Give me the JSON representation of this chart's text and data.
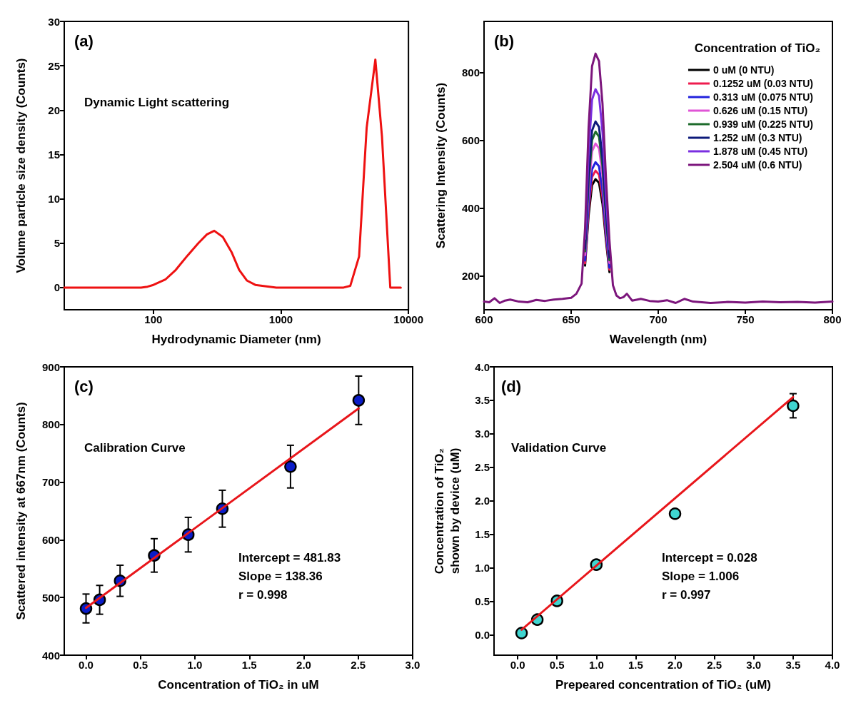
{
  "chart_data": [
    {
      "type": "line",
      "xlabel": "Hydrodynamic Diameter (nm)",
      "ylabel": "Volume particle size density (Counts)",
      "log": "x",
      "xlim": [
        20,
        10000
      ],
      "xticks": [
        100,
        1000,
        10000
      ],
      "ylim": [
        -2.5,
        30
      ],
      "yticks": [
        0,
        5,
        10,
        15,
        20,
        25,
        30
      ],
      "annotations": [
        "(a)",
        "Dynamic Light scattering"
      ],
      "x": [
        20,
        50,
        80,
        90,
        100,
        124,
        150,
        185,
        225,
        263,
        300,
        350,
        410,
        470,
        540,
        630,
        920,
        3100,
        3500,
        4100,
        4700,
        5500,
        6200,
        7200,
        8700
      ],
      "series": [
        {
          "color": "#ee1111",
          "values": [
            0,
            0,
            0,
            0.1,
            0.3,
            0.9,
            2.0,
            3.6,
            5.0,
            6.0,
            6.4,
            5.7,
            4.0,
            2.0,
            0.8,
            0.3,
            0,
            0,
            0.2,
            3.5,
            18,
            25.7,
            17,
            0,
            0
          ]
        }
      ]
    },
    {
      "type": "line",
      "xlabel": "Wavelength (nm)",
      "ylabel": "Scattering Intensity (Counts)",
      "legend_title": "Concentration of TiO₂",
      "legend": "top right",
      "xlim": [
        600,
        800
      ],
      "xticks": [
        600,
        650,
        700,
        750,
        800
      ],
      "ylim": [
        100,
        950
      ],
      "yticks": [
        200,
        400,
        600,
        800
      ],
      "annotations": [
        "(b)"
      ],
      "x": [
        600,
        603,
        606,
        609,
        612,
        615,
        620,
        625,
        630,
        635,
        640,
        645,
        650,
        653,
        656,
        658,
        660,
        662,
        664,
        666,
        668,
        670,
        672,
        674,
        676,
        678,
        680,
        682,
        685,
        690,
        695,
        700,
        705,
        710,
        715,
        720,
        725,
        730,
        740,
        750,
        760,
        770,
        780,
        790,
        800
      ],
      "series": [
        {
          "name": "0 uM (0 NTU)",
          "color": "#000000",
          "values": [
            null,
            null,
            null,
            null,
            null,
            null,
            null,
            null,
            null,
            null,
            null,
            null,
            null,
            null,
            null,
            230,
            376,
            467,
            485,
            474,
            412,
            303,
            211,
            null,
            null,
            null,
            null,
            null,
            null,
            null,
            null,
            null,
            null,
            null,
            null,
            null,
            null,
            null,
            null,
            null,
            null,
            null,
            null,
            null,
            null
          ]
        },
        {
          "name": "0.1252 uM (0.03 NTU)",
          "color": "#ee1c4e",
          "values": [
            null,
            null,
            null,
            null,
            null,
            null,
            null,
            null,
            null,
            null,
            null,
            null,
            null,
            null,
            null,
            237,
            393,
            491,
            510,
            498,
            432,
            315,
            218,
            null,
            null,
            null,
            null,
            null,
            null,
            null,
            null,
            null,
            null,
            null,
            null,
            null,
            null,
            null,
            null,
            null,
            null,
            null,
            null,
            null,
            null
          ]
        },
        {
          "name": "0.313 uM (0.075 NTU)",
          "color": "#2222dd",
          "values": [
            null,
            null,
            null,
            null,
            null,
            null,
            null,
            null,
            null,
            null,
            null,
            null,
            null,
            null,
            null,
            245,
            411,
            514,
            535,
            523,
            452,
            328,
            224,
            null,
            null,
            null,
            null,
            null,
            null,
            null,
            null,
            null,
            null,
            null,
            null,
            null,
            null,
            null,
            null,
            null,
            null,
            null,
            null,
            null,
            null
          ]
        },
        {
          "name": "0.626 uM (0.15 NTU)",
          "color": "#e055d6",
          "values": [
            null,
            null,
            null,
            null,
            null,
            null,
            null,
            null,
            null,
            null,
            null,
            null,
            null,
            null,
            null,
            261,
            449,
            567,
            590,
            576,
            496,
            355,
            238,
            null,
            null,
            null,
            null,
            null,
            null,
            null,
            null,
            null,
            null,
            null,
            null,
            null,
            null,
            null,
            null,
            null,
            null,
            null,
            null,
            null,
            null
          ]
        },
        {
          "name": "0.939 uM (0.225 NTU)",
          "color": "#1d6b2b",
          "values": [
            null,
            null,
            null,
            null,
            null,
            null,
            null,
            null,
            null,
            null,
            null,
            null,
            null,
            null,
            null,
            272,
            474,
            600,
            625,
            610,
            524,
            373,
            246,
            null,
            null,
            null,
            null,
            null,
            null,
            null,
            null,
            null,
            null,
            null,
            null,
            null,
            null,
            null,
            null,
            null,
            null,
            null,
            null,
            null,
            null
          ]
        },
        {
          "name": "1.252 uM (0.3 NTU)",
          "color": "#0d1a7a",
          "values": [
            null,
            null,
            null,
            null,
            null,
            null,
            null,
            null,
            null,
            null,
            null,
            null,
            null,
            null,
            null,
            281,
            495,
            628,
            655,
            639,
            548,
            388,
            254,
            null,
            null,
            null,
            null,
            null,
            null,
            null,
            null,
            null,
            null,
            null,
            null,
            null,
            null,
            null,
            null,
            null,
            null,
            null,
            null,
            null,
            null
          ]
        },
        {
          "name": "1.878 uM (0.45 NTU)",
          "color": "#7a2fe0",
          "values": [
            null,
            null,
            null,
            null,
            null,
            null,
            null,
            null,
            null,
            null,
            null,
            null,
            null,
            null,
            null,
            309,
            561,
            719,
            750,
            731,
            624,
            435,
            278,
            null,
            null,
            null,
            null,
            null,
            null,
            null,
            null,
            null,
            null,
            null,
            null,
            null,
            null,
            null,
            null,
            null,
            null,
            null,
            null,
            null,
            null
          ]
        },
        {
          "name": "2.504 uM (0.6 NTU)",
          "color": "#7c167c",
          "values": [
            124,
            122,
            134,
            120,
            127,
            130,
            124,
            122,
            129,
            126,
            130,
            132,
            135,
            147,
            177,
            341,
            635,
            818,
            855,
            833,
            708,
            488,
            304,
            172,
            142,
            134,
            137,
            147,
            127,
            132,
            126,
            124,
            128,
            120,
            132,
            124,
            122,
            120,
            123,
            121,
            124,
            122,
            123,
            121,
            124
          ]
        }
      ]
    },
    {
      "type": "scatter",
      "xlabel": "Concentration of TiO₂ in uM",
      "ylabel": "Scattered intensity at 667nm (Counts)",
      "xlim": [
        -0.2,
        3.0
      ],
      "xticks": [
        {
          "value": 0,
          "label": "0.0"
        },
        0.5,
        {
          "value": 1,
          "label": "1.0"
        },
        1.5,
        {
          "value": 2,
          "label": "2.0"
        },
        2.5,
        {
          "value": 3,
          "label": "3.0"
        }
      ],
      "ylim": [
        400,
        900
      ],
      "yticks": [
        400,
        500,
        600,
        700,
        800,
        900
      ],
      "annotations": [
        "(c)",
        "Calibration Curve",
        "Intercept = 481.83",
        "Slope = 138.36",
        "r = 0.998"
      ],
      "x": [
        0,
        0.1252,
        0.313,
        0.626,
        0.939,
        1.252,
        1.878,
        2.504
      ],
      "series": [
        {
          "color": "#0a1cc8",
          "marker": "circle",
          "values": [
            481,
            496,
            529,
            573,
            609,
            654,
            727,
            842
          ],
          "errors": [
            25,
            25,
            27,
            29,
            30,
            32,
            37,
            42
          ]
        },
        {
          "type": "line",
          "marker": "none",
          "color": "#e8161b",
          "x": [
            0,
            2.504
          ],
          "values": [
            482,
            828
          ]
        }
      ]
    },
    {
      "type": "scatter",
      "xlabel": "Prepeared concentration of TiO₂ (uM)",
      "ylabel": "Concentration of TiO₂\nshown by device (uM)",
      "xlim": [
        -0.3,
        4.0
      ],
      "xticks": [
        {
          "value": 0,
          "label": "0.0"
        },
        0.5,
        {
          "value": 1,
          "label": "1.0"
        },
        1.5,
        {
          "value": 2,
          "label": "2.0"
        },
        2.5,
        {
          "value": 3,
          "label": "3.0"
        },
        3.5,
        {
          "value": 4,
          "label": "4.0"
        }
      ],
      "ylim": [
        -0.3,
        4.0
      ],
      "yticks": [
        {
          "value": 0,
          "label": "0.0"
        },
        0.5,
        {
          "value": 1,
          "label": "1.0"
        },
        1.5,
        {
          "value": 2,
          "label": "2.0"
        },
        2.5,
        {
          "value": 3,
          "label": "3.0"
        },
        3.5,
        {
          "value": 4,
          "label": "4.0"
        }
      ],
      "annotations": [
        "(d)",
        "Validation Curve",
        "Intercept = 0.028",
        "Slope = 1.006",
        "r = 0.997"
      ],
      "x": [
        0.05,
        0.25,
        0.5,
        1.0,
        2.0,
        3.5
      ],
      "series": [
        {
          "color": "#3fd5d0",
          "marker": "circle",
          "values": [
            0.03,
            0.23,
            0.51,
            1.05,
            1.81,
            3.42
          ],
          "errors": [
            null,
            null,
            null,
            null,
            null,
            0.18
          ]
        },
        {
          "type": "line",
          "marker": "none",
          "color": "#e8161b",
          "x": [
            0.05,
            3.5
          ],
          "values": [
            0.08,
            3.55
          ]
        }
      ]
    }
  ]
}
